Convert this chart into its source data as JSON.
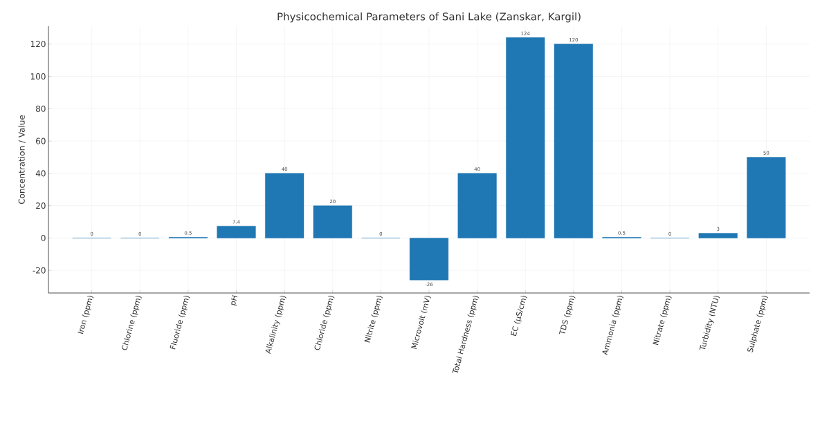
{
  "chart_data": {
    "type": "bar",
    "title": "Physicochemical Parameters of Sani Lake (Zanskar, Kargil)",
    "ylabel": "Concentration / Value",
    "categories": [
      "Iron (ppm)",
      "Chlorine (ppm)",
      "Fluoride (ppm)",
      "pH",
      "Alkalinity (ppm)",
      "Chloride (ppm)",
      "Nitrite (ppm)",
      "Microvolt (mV)",
      "Total Hardness (ppm)",
      "EC (µS/cm)",
      "TDS (ppm)",
      "Ammonia (ppm)",
      "Nitrate (ppm)",
      "Turbidity (NTU)",
      "Sulphate (ppm)"
    ],
    "values": [
      0,
      0,
      0.5,
      7.4,
      40,
      20,
      0,
      -26,
      40,
      124,
      120,
      0.5,
      0,
      3,
      50
    ],
    "color": "#1f77b4",
    "ylim": [
      -34,
      131
    ],
    "yticks": [
      -20,
      0,
      20,
      40,
      60,
      80,
      100,
      120
    ],
    "grid": true,
    "data_labels": true
  }
}
